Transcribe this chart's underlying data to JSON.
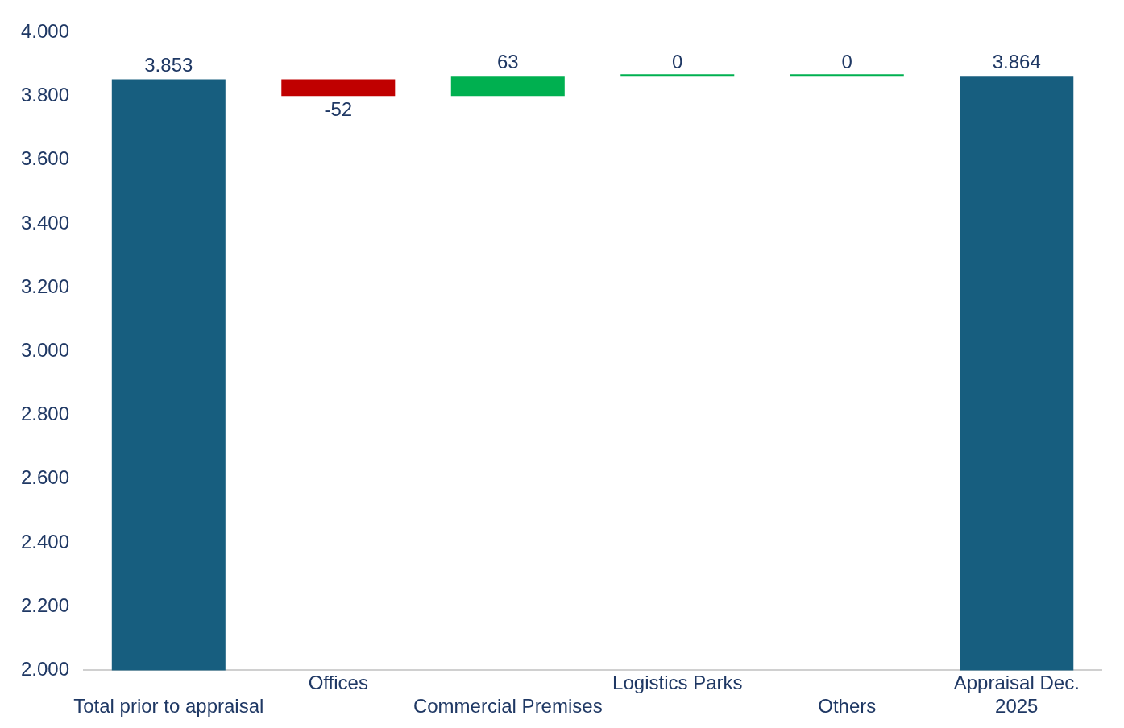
{
  "chart_data": {
    "type": "bar",
    "categories": [
      "Total prior to appraisal",
      "Offices",
      "Commercial Premises",
      "Logistics Parks",
      "Others",
      "Appraisal Dec. 2025"
    ],
    "values": [
      3853,
      -52,
      63,
      0,
      0,
      3864
    ],
    "base": [
      null,
      3853,
      3801,
      3864,
      3864,
      null
    ],
    "colors": [
      "#175e7f",
      "#c00000",
      "#00b050",
      "#00b050",
      "#00b050",
      "#175e7f"
    ],
    "value_labels": [
      "3.853",
      "-52",
      "63",
      "0",
      "0",
      "3.864"
    ],
    "ylim": [
      2000,
      4000
    ],
    "yticks": [
      {
        "value": 2000,
        "label": "2.000"
      },
      {
        "value": 2200,
        "label": "2.200"
      },
      {
        "value": 2400,
        "label": "2.400"
      },
      {
        "value": 2600,
        "label": "2.600"
      },
      {
        "value": 2800,
        "label": "2.800"
      },
      {
        "value": 3000,
        "label": "3.000"
      },
      {
        "value": 3200,
        "label": "3.200"
      },
      {
        "value": 3400,
        "label": "3.400"
      },
      {
        "value": 3600,
        "label": "3.600"
      },
      {
        "value": 3800,
        "label": "3.800"
      },
      {
        "value": 4000,
        "label": "4.000"
      }
    ],
    "grid": false,
    "legend": false
  }
}
